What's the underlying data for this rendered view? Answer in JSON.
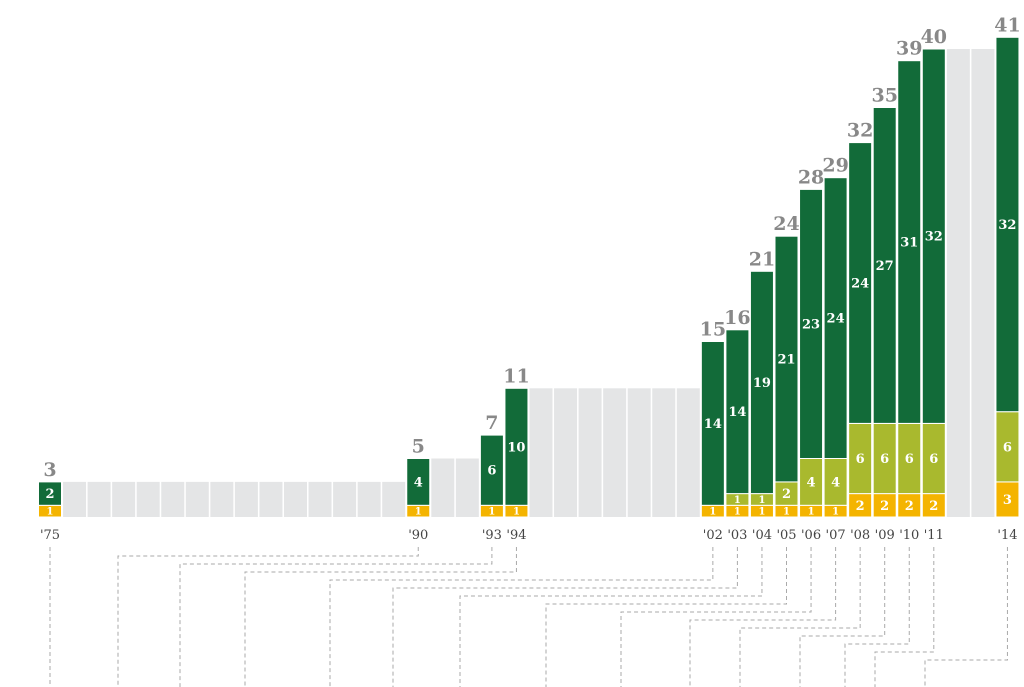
{
  "colors": {
    "dark_green": "#126b39",
    "light_green": "#a9b92e",
    "orange": "#f4b400",
    "gap_gray": "#e4e5e6",
    "label_gray": "#888888",
    "leader_line": "#aaaaaa"
  },
  "chart_data": {
    "type": "bar",
    "stacked": true,
    "series": [
      {
        "key": "orange",
        "color": "#f4b400"
      },
      {
        "key": "light_green",
        "color": "#a9b92e"
      },
      {
        "key": "dark_green",
        "color": "#126b39"
      }
    ],
    "ylim": [
      0,
      41
    ],
    "categories": [
      "'75",
      "'90",
      "'93",
      "'94",
      "'02",
      "'03",
      "'04",
      "'05",
      "'06",
      "'07",
      "'08",
      "'09",
      "'10",
      "'11",
      "'14"
    ],
    "bars": [
      {
        "year": "'75",
        "total": "3",
        "orange": 1,
        "light_green": 0,
        "dark_green": 2
      },
      {
        "year": "'90",
        "total": "5",
        "orange": 1,
        "light_green": 0,
        "dark_green": 4
      },
      {
        "year": "'93",
        "total": "7",
        "orange": 1,
        "light_green": 0,
        "dark_green": 6
      },
      {
        "year": "'94",
        "total": "11",
        "orange": 1,
        "light_green": 0,
        "dark_green": 10
      },
      {
        "year": "'02",
        "total": "15",
        "orange": 1,
        "light_green": 0,
        "dark_green": 14
      },
      {
        "year": "'03",
        "total": "16",
        "orange": 1,
        "light_green": 1,
        "dark_green": 14
      },
      {
        "year": "'04",
        "total": "21",
        "orange": 1,
        "light_green": 1,
        "dark_green": 19
      },
      {
        "year": "'05",
        "total": "24",
        "orange": 1,
        "light_green": 2,
        "dark_green": 21
      },
      {
        "year": "'06",
        "total": "28",
        "orange": 1,
        "light_green": 4,
        "dark_green": 23
      },
      {
        "year": "'07",
        "total": "29",
        "orange": 1,
        "light_green": 4,
        "dark_green": 24
      },
      {
        "year": "'08",
        "total": "32",
        "orange": 2,
        "light_green": 6,
        "dark_green": 24
      },
      {
        "year": "'09",
        "total": "35",
        "orange": 2,
        "light_green": 6,
        "dark_green": 27
      },
      {
        "year": "'10",
        "total": "39",
        "orange": 2,
        "light_green": 6,
        "dark_green": 31
      },
      {
        "year": "'11",
        "total": "40",
        "orange": 2,
        "light_green": 6,
        "dark_green": 32
      },
      {
        "year": "'14",
        "total": "41",
        "orange": 3,
        "light_green": 6,
        "dark_green": 32
      }
    ],
    "filler_years": [
      "'76",
      "'77",
      "'78",
      "'79",
      "'80",
      "'81",
      "'82",
      "'83",
      "'84",
      "'85",
      "'86",
      "'87",
      "'88",
      "'89",
      "'91",
      "'92",
      "'95",
      "'96",
      "'97",
      "'98",
      "'99",
      "'00",
      "'01",
      "'12",
      "'13"
    ],
    "grid": false,
    "legend": "none"
  }
}
